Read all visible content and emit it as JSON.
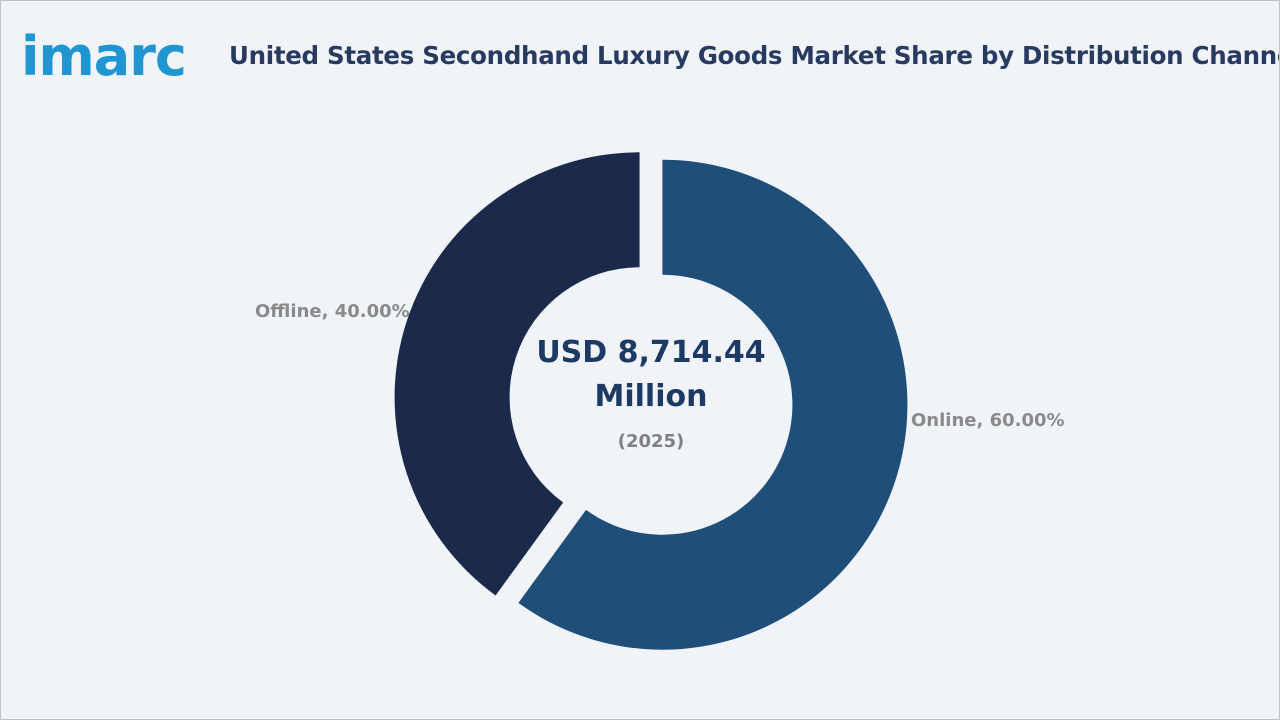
{
  "header": {
    "logo_text": "imarc",
    "title": "United States Secondhand Luxury Goods Market Share by Distribution Channel"
  },
  "center": {
    "value_line1": "USD 8,714.44",
    "value_line2": "Million",
    "year": "(2025)"
  },
  "colors": {
    "online": "#1f4e79",
    "offline": "#1b2a4a",
    "logo": "#1f95d1",
    "title": "#283a5f"
  },
  "chart_data": {
    "type": "pie",
    "title": "United States Secondhand Luxury Goods Market Share by Distribution Channel",
    "categories": [
      "Online",
      "Offline"
    ],
    "values": [
      60.0,
      40.0
    ],
    "unit": "%",
    "labels": [
      "Online, 60.00%",
      "Offline, 40.00%"
    ],
    "center_label": "USD 8,714.44 Million (2025)"
  }
}
